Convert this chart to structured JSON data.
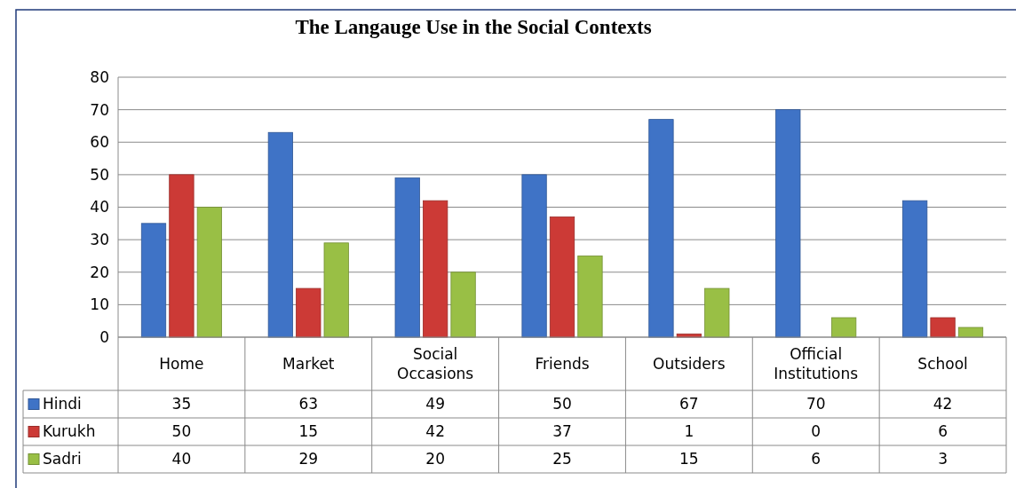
{
  "chart_data": {
    "type": "bar",
    "title": "The Langauge Use in the Social Contexts",
    "categories": [
      "Home",
      "Market",
      "Social Occasions",
      "Friends",
      "Outsiders",
      "Official Institutions",
      "School"
    ],
    "series": [
      {
        "name": "Hindi",
        "color": "#3f73c6",
        "values": [
          35,
          63,
          49,
          50,
          67,
          70,
          42
        ]
      },
      {
        "name": "Kurukh",
        "color": "#cc3a36",
        "values": [
          50,
          15,
          42,
          37,
          1,
          0,
          6
        ]
      },
      {
        "name": "Sadri",
        "color": "#99bf45",
        "values": [
          40,
          29,
          20,
          25,
          15,
          6,
          3
        ]
      }
    ],
    "ylim": [
      0,
      80
    ],
    "yticks": [
      0,
      10,
      20,
      30,
      40,
      50,
      60,
      70,
      80
    ],
    "grid": "y",
    "data_labels": true,
    "legend": "bottom left"
  }
}
